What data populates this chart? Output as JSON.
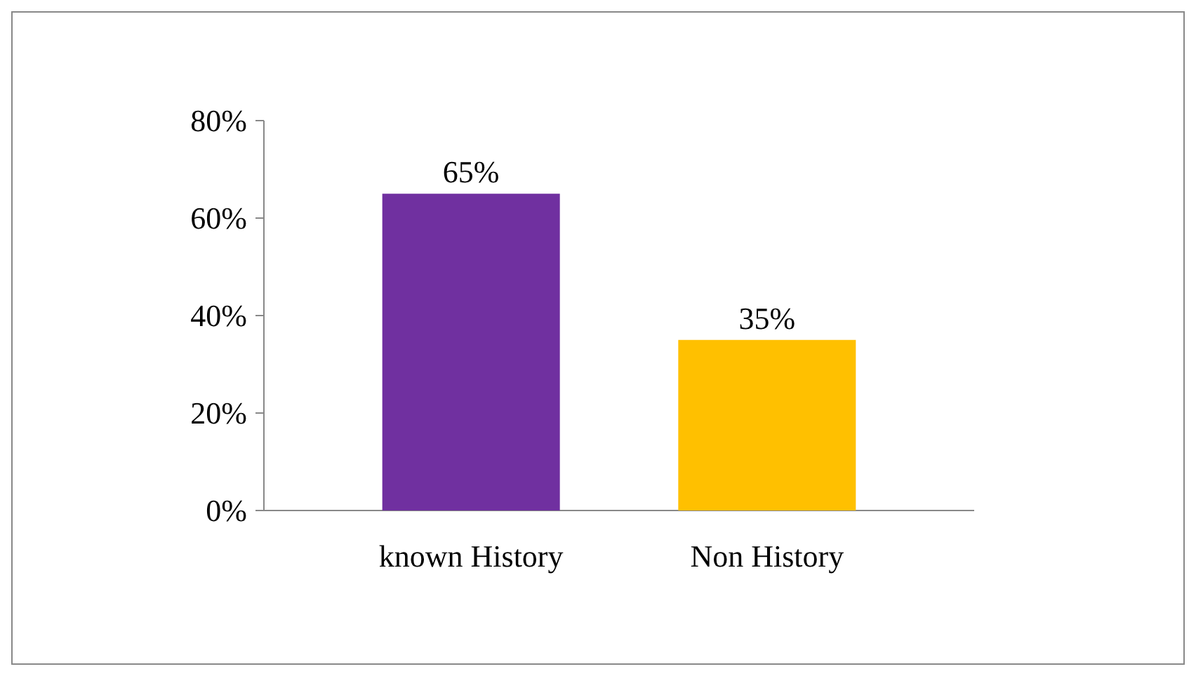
{
  "chart_data": {
    "type": "bar",
    "categories": [
      "known History",
      "Non History"
    ],
    "values": [
      65,
      35
    ],
    "colors": [
      "#7030a0",
      "#ffc000"
    ],
    "value_labels": [
      "65%",
      "35%"
    ],
    "ylim": [
      0,
      80
    ],
    "yticks": [
      {
        "value": 0,
        "label": "0%"
      },
      {
        "value": 20,
        "label": "20%"
      },
      {
        "value": 40,
        "label": "40%"
      },
      {
        "value": 60,
        "label": "60%"
      },
      {
        "value": 80,
        "label": "80%"
      }
    ]
  }
}
